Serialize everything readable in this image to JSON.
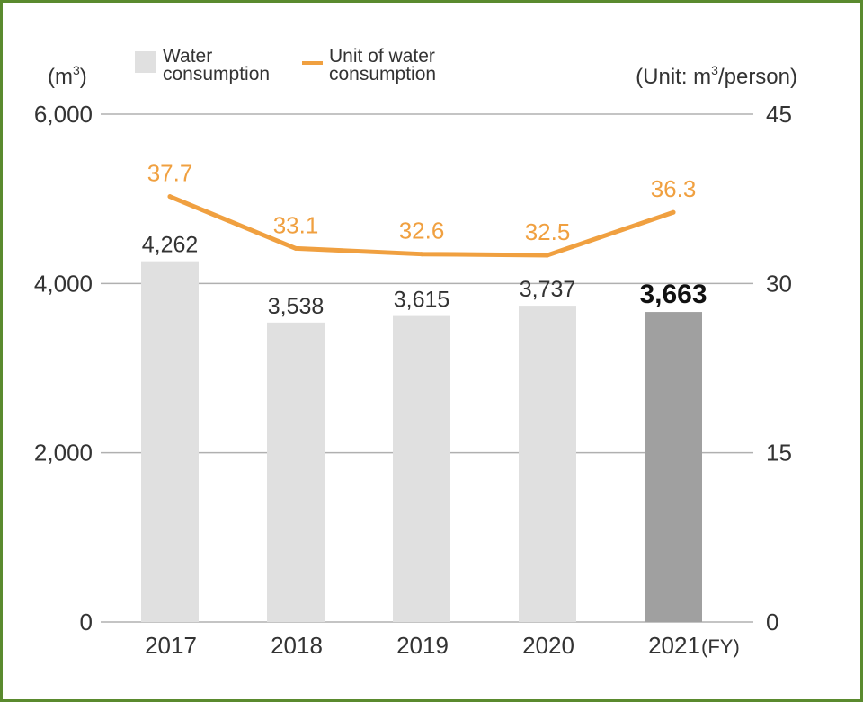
{
  "chart_data": {
    "type": "bar+line",
    "categories": [
      "2017",
      "2018",
      "2019",
      "2020",
      "2021"
    ],
    "x_unit": "(FY)",
    "series": [
      {
        "name": "Water consumption",
        "name_lines": [
          "Water",
          "consumption"
        ],
        "type": "bar",
        "axis": "left",
        "values": [
          4262,
          3538,
          3615,
          3737,
          3663
        ],
        "labels": [
          "4,262",
          "3,538",
          "3,615",
          "3,737",
          "3,663"
        ],
        "colors": [
          "#e0e0e0",
          "#e0e0e0",
          "#e0e0e0",
          "#e0e0e0",
          "#a0a0a0"
        ],
        "highlight_index": 4
      },
      {
        "name": "Unit of water consumption",
        "name_lines": [
          "Unit of water",
          "consumption"
        ],
        "type": "line",
        "axis": "right",
        "values": [
          37.7,
          33.1,
          32.6,
          32.5,
          36.3
        ],
        "labels": [
          "37.7",
          "33.1",
          "32.6",
          "32.5",
          "36.3"
        ],
        "color": "#f0a040"
      }
    ],
    "left_axis": {
      "unit_base": "(m",
      "unit_sup": "3",
      "unit_close": ")",
      "ylim": [
        0,
        6000
      ],
      "ticks": [
        "0",
        "2,000",
        "4,000",
        "6,000"
      ],
      "tick_values": [
        0,
        2000,
        4000,
        6000
      ]
    },
    "right_axis": {
      "unit_base": "(Unit: m",
      "unit_sup": "3",
      "unit_close": "/person)",
      "ylim": [
        0,
        45
      ],
      "ticks": [
        "0",
        "15",
        "30",
        "45"
      ],
      "tick_values": [
        0,
        15,
        30,
        45
      ]
    },
    "grid": true,
    "legend_position": "top"
  },
  "colors": {
    "frame": "#5a8a2e",
    "grid": "#b0b0b0",
    "text": "#333333",
    "bar": "#e0e0e0",
    "bar_highlight": "#a0a0a0",
    "line": "#f0a040"
  }
}
